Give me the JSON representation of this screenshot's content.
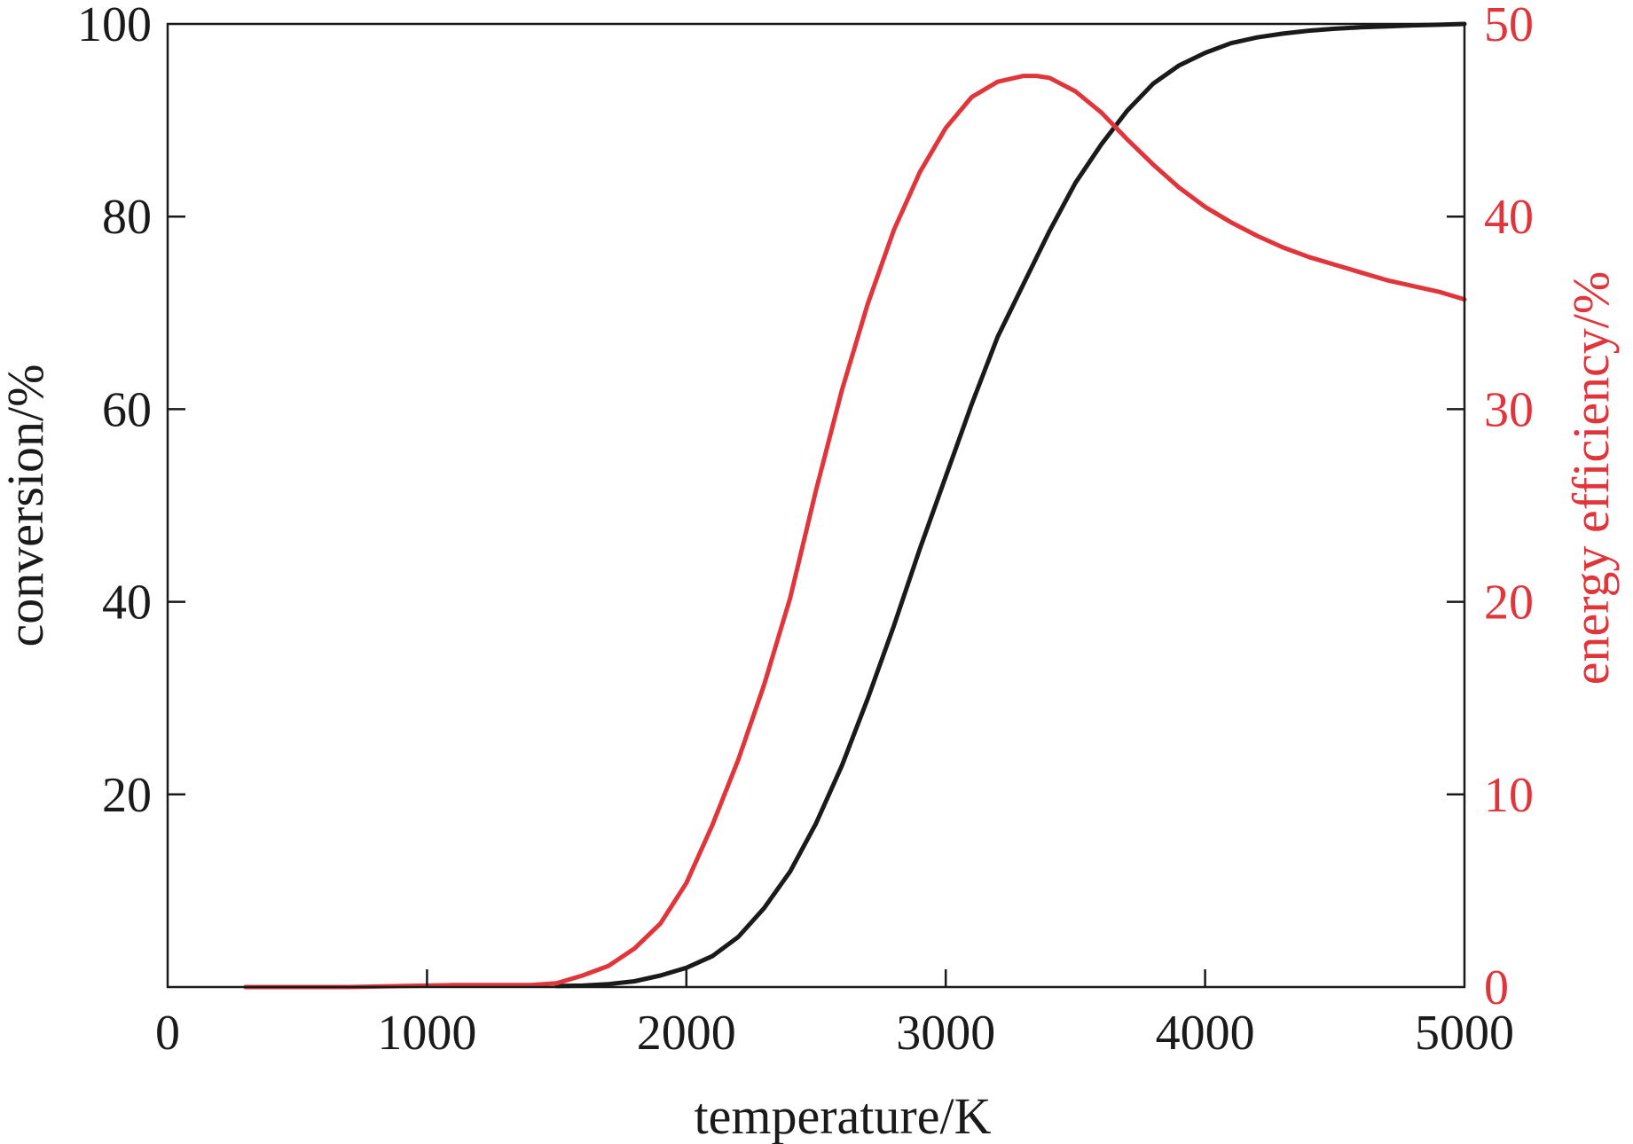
{
  "chart_data": {
    "type": "line",
    "title": "",
    "xlabel": "temperature/K",
    "ylabel_left": "conversion/%",
    "ylabel_right": "energy efficiency/%",
    "xlim": [
      0,
      5000
    ],
    "ylim_left": [
      0,
      100
    ],
    "ylim_right": [
      0,
      50
    ],
    "grid": false,
    "legend": "none",
    "x_ticks": [
      "0",
      "1000",
      "2000",
      "3000",
      "4000",
      "5000"
    ],
    "y_left_ticks": [
      "20",
      "40",
      "60",
      "80",
      "100"
    ],
    "y_right_ticks": [
      "0",
      "10",
      "20",
      "30",
      "40",
      "50"
    ],
    "colors": {
      "conversion": "#1a1a1a",
      "energy_efficiency": "#e0353b",
      "axis": "#1a1a1a"
    },
    "series": [
      {
        "axis": "left",
        "color": "#1a1a1a",
        "x": [
          1500,
          1600,
          1700,
          1800,
          1900,
          2000,
          2100,
          2200,
          2300,
          2400,
          2500,
          2600,
          2700,
          2800,
          2900,
          3000,
          3100,
          3200,
          3300,
          3400,
          3500,
          3600,
          3700,
          3800,
          3900,
          4000,
          4100,
          4200,
          4300,
          4400,
          4500,
          4600,
          4700,
          4800,
          4900,
          5000
        ],
        "y": [
          0.1,
          0.15,
          0.3,
          0.6,
          1.2,
          2.0,
          3.2,
          5.2,
          8.2,
          12.0,
          17.0,
          23.0,
          30.0,
          37.5,
          45.5,
          53.0,
          60.5,
          67.5,
          73.0,
          78.5,
          83.5,
          87.5,
          91.0,
          93.8,
          95.7,
          97.0,
          98.0,
          98.6,
          99.0,
          99.3,
          99.5,
          99.65,
          99.75,
          99.85,
          99.92,
          100
        ]
      },
      {
        "axis": "right",
        "color": "#e0353b",
        "x": [
          300,
          500,
          700,
          900,
          1100,
          1300,
          1400,
          1500,
          1600,
          1700,
          1800,
          1900,
          2000,
          2100,
          2200,
          2300,
          2400,
          2500,
          2600,
          2700,
          2800,
          2900,
          3000,
          3100,
          3200,
          3300,
          3350,
          3400,
          3500,
          3600,
          3700,
          3800,
          3900,
          4000,
          4100,
          4200,
          4300,
          4400,
          4500,
          4600,
          4700,
          4800,
          4900,
          5000
        ],
        "y": [
          0,
          0,
          0,
          0.05,
          0.1,
          0.1,
          0.1,
          0.2,
          0.6,
          1.1,
          2.0,
          3.3,
          5.4,
          8.4,
          11.8,
          15.7,
          20.2,
          25.8,
          31.0,
          35.5,
          39.3,
          42.3,
          44.6,
          46.2,
          47.0,
          47.3,
          47.3,
          47.2,
          46.5,
          45.4,
          44.0,
          42.7,
          41.5,
          40.5,
          39.7,
          39.0,
          38.4,
          37.9,
          37.5,
          37.1,
          36.7,
          36.4,
          36.1,
          35.7
        ]
      }
    ]
  }
}
